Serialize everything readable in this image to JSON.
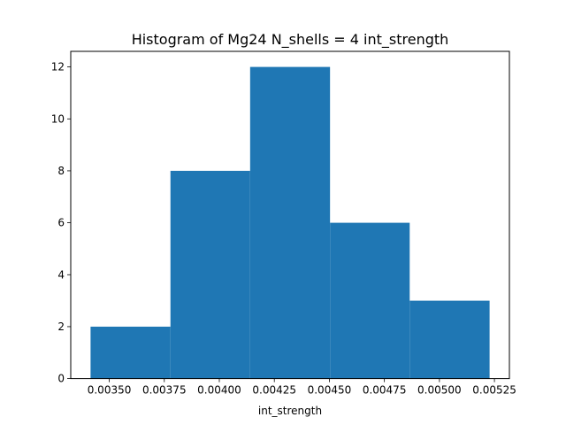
{
  "chart_data": {
    "type": "bar",
    "subtype": "histogram",
    "title": "Histogram of Mg24 N_shells = 4 int_strength",
    "xlabel": "int_strength",
    "ylabel": "",
    "bar_color": "#1f77b4",
    "bins": [
      {
        "left": 0.003415,
        "right": 0.003778,
        "count": 2
      },
      {
        "left": 0.003778,
        "right": 0.00414,
        "count": 8
      },
      {
        "left": 0.00414,
        "right": 0.004503,
        "count": 12
      },
      {
        "left": 0.004503,
        "right": 0.004865,
        "count": 6
      },
      {
        "left": 0.004865,
        "right": 0.005228,
        "count": 3
      }
    ],
    "xlim": [
      0.003325,
      0.005318
    ],
    "ylim": [
      0,
      12.6
    ],
    "xticks": [
      0.0035,
      0.00375,
      0.004,
      0.00425,
      0.0045,
      0.00475,
      0.005,
      0.00525
    ],
    "xtick_labels": [
      "0.00350",
      "0.00375",
      "0.00400",
      "0.00425",
      "0.00450",
      "0.00475",
      "0.00500",
      "0.00525"
    ],
    "yticks": [
      0,
      2,
      4,
      6,
      8,
      10,
      12
    ],
    "ytick_labels": [
      "0",
      "2",
      "4",
      "6",
      "8",
      "10",
      "12"
    ],
    "grid": false,
    "legend": "none"
  }
}
